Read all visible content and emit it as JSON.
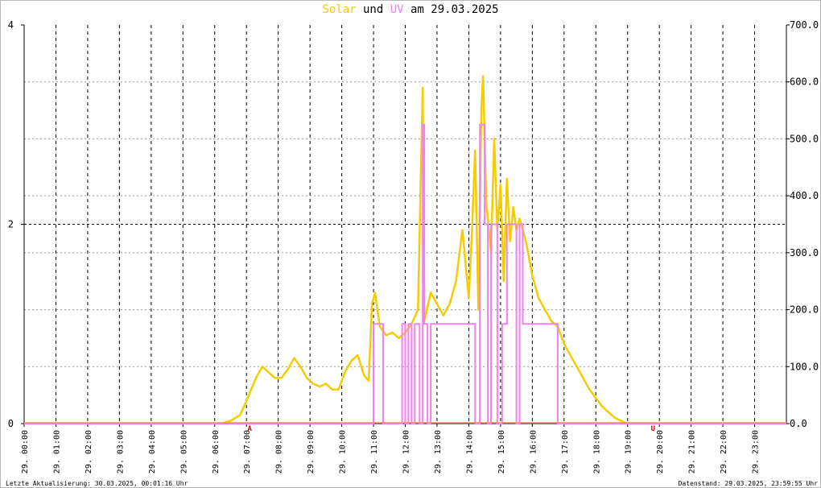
{
  "header": {
    "title_part1": "Solar",
    "title_part2": " und ",
    "title_part3": "UV",
    "title_part4": " am 29.03.2025"
  },
  "footer": {
    "left": "Letzte Aktualisierung: 30.03.2025, 00:01:16 Uhr",
    "right": "Datenstand: 29.03.2025, 23:59:55 Uhr"
  },
  "colors": {
    "solar": "#f5cc00",
    "uv": "#ee82ee",
    "grid": "#000000",
    "baseline": "#ff8c69",
    "marker": "#d00000"
  },
  "chart_data": {
    "type": "line",
    "title": "Solar und UV am 29.03.2025",
    "x_range_hours": [
      0,
      24
    ],
    "x_tick_labels": [
      "29. 00:00",
      "29. 01:00",
      "29. 02:00",
      "29. 03:00",
      "29. 04:00",
      "29. 05:00",
      "29. 06:00",
      "29. 07:00",
      "29. 08:00",
      "29. 09:00",
      "29. 10:00",
      "29. 11:00",
      "29. 12:00",
      "29. 13:00",
      "29. 14:00",
      "29. 15:00",
      "29. 16:00",
      "29. 17:00",
      "29. 18:00",
      "29. 19:00",
      "29. 20:00",
      "29. 21:00",
      "29. 22:00",
      "29. 23:00"
    ],
    "y_left": {
      "range": [
        0,
        4
      ],
      "ticks": [
        "0",
        "2",
        "4"
      ]
    },
    "y_right": {
      "range": [
        0,
        700
      ],
      "ticks": [
        "0.0",
        "100.0",
        "200.0",
        "300.0",
        "400.0",
        "500.0",
        "600.0",
        "700.0"
      ]
    },
    "markers": [
      {
        "hour": 7.1,
        "label": "A"
      },
      {
        "hour": 19.8,
        "label": "U"
      }
    ],
    "series": [
      {
        "name": "Solar",
        "axis": "right",
        "points": [
          [
            0,
            0
          ],
          [
            6.2,
            0
          ],
          [
            6.5,
            5
          ],
          [
            6.8,
            15
          ],
          [
            7.0,
            40
          ],
          [
            7.3,
            80
          ],
          [
            7.5,
            100
          ],
          [
            7.7,
            90
          ],
          [
            7.9,
            80
          ],
          [
            8.1,
            80
          ],
          [
            8.3,
            95
          ],
          [
            8.5,
            115
          ],
          [
            8.7,
            100
          ],
          [
            8.9,
            80
          ],
          [
            9.1,
            70
          ],
          [
            9.3,
            65
          ],
          [
            9.5,
            70
          ],
          [
            9.7,
            60
          ],
          [
            9.9,
            60
          ],
          [
            10.1,
            90
          ],
          [
            10.3,
            110
          ],
          [
            10.5,
            120
          ],
          [
            10.7,
            85
          ],
          [
            10.85,
            75
          ],
          [
            10.95,
            210
          ],
          [
            11.05,
            230
          ],
          [
            11.2,
            170
          ],
          [
            11.4,
            155
          ],
          [
            11.6,
            160
          ],
          [
            11.8,
            150
          ],
          [
            12.0,
            160
          ],
          [
            12.2,
            175
          ],
          [
            12.4,
            200
          ],
          [
            12.55,
            590
          ],
          [
            12.6,
            180
          ],
          [
            12.8,
            230
          ],
          [
            13.0,
            210
          ],
          [
            13.2,
            190
          ],
          [
            13.4,
            210
          ],
          [
            13.6,
            250
          ],
          [
            13.8,
            340
          ],
          [
            14.0,
            220
          ],
          [
            14.1,
            340
          ],
          [
            14.2,
            480
          ],
          [
            14.3,
            200
          ],
          [
            14.4,
            560
          ],
          [
            14.45,
            610
          ],
          [
            14.55,
            390
          ],
          [
            14.7,
            300
          ],
          [
            14.8,
            500
          ],
          [
            14.9,
            340
          ],
          [
            15.0,
            420
          ],
          [
            15.1,
            250
          ],
          [
            15.2,
            430
          ],
          [
            15.3,
            320
          ],
          [
            15.4,
            380
          ],
          [
            15.5,
            340
          ],
          [
            15.6,
            360
          ],
          [
            15.8,
            320
          ],
          [
            16.0,
            260
          ],
          [
            16.2,
            220
          ],
          [
            16.4,
            200
          ],
          [
            16.6,
            180
          ],
          [
            16.8,
            170
          ],
          [
            17.0,
            140
          ],
          [
            17.4,
            100
          ],
          [
            17.8,
            60
          ],
          [
            18.2,
            30
          ],
          [
            18.6,
            10
          ],
          [
            18.9,
            2
          ],
          [
            19.0,
            0
          ],
          [
            24,
            0
          ]
        ]
      },
      {
        "name": "UV",
        "axis": "left",
        "points": [
          [
            0,
            0
          ],
          [
            11.0,
            0
          ],
          [
            11.0,
            1
          ],
          [
            11.3,
            1
          ],
          [
            11.3,
            0
          ],
          [
            11.9,
            0
          ],
          [
            11.9,
            1
          ],
          [
            12.0,
            1
          ],
          [
            12.0,
            0
          ],
          [
            12.1,
            0
          ],
          [
            12.1,
            1
          ],
          [
            12.2,
            1
          ],
          [
            12.2,
            0
          ],
          [
            12.3,
            0
          ],
          [
            12.3,
            1
          ],
          [
            12.45,
            1
          ],
          [
            12.45,
            0
          ],
          [
            12.55,
            0
          ],
          [
            12.55,
            3
          ],
          [
            12.6,
            3
          ],
          [
            12.6,
            1
          ],
          [
            12.7,
            1
          ],
          [
            12.7,
            0
          ],
          [
            12.8,
            0
          ],
          [
            12.8,
            1
          ],
          [
            14.2,
            1
          ],
          [
            14.2,
            0
          ],
          [
            14.35,
            0
          ],
          [
            14.35,
            3
          ],
          [
            14.5,
            3
          ],
          [
            14.5,
            2
          ],
          [
            14.6,
            2
          ],
          [
            14.6,
            0
          ],
          [
            14.7,
            0
          ],
          [
            14.7,
            2
          ],
          [
            14.9,
            2
          ],
          [
            14.9,
            0
          ],
          [
            15.05,
            0
          ],
          [
            15.05,
            1
          ],
          [
            15.2,
            1
          ],
          [
            15.2,
            2
          ],
          [
            15.5,
            2
          ],
          [
            15.5,
            0
          ],
          [
            15.6,
            0
          ],
          [
            15.6,
            2
          ],
          [
            15.7,
            2
          ],
          [
            15.7,
            1
          ],
          [
            16.8,
            1
          ],
          [
            16.8,
            0
          ],
          [
            24,
            0
          ]
        ]
      }
    ]
  }
}
